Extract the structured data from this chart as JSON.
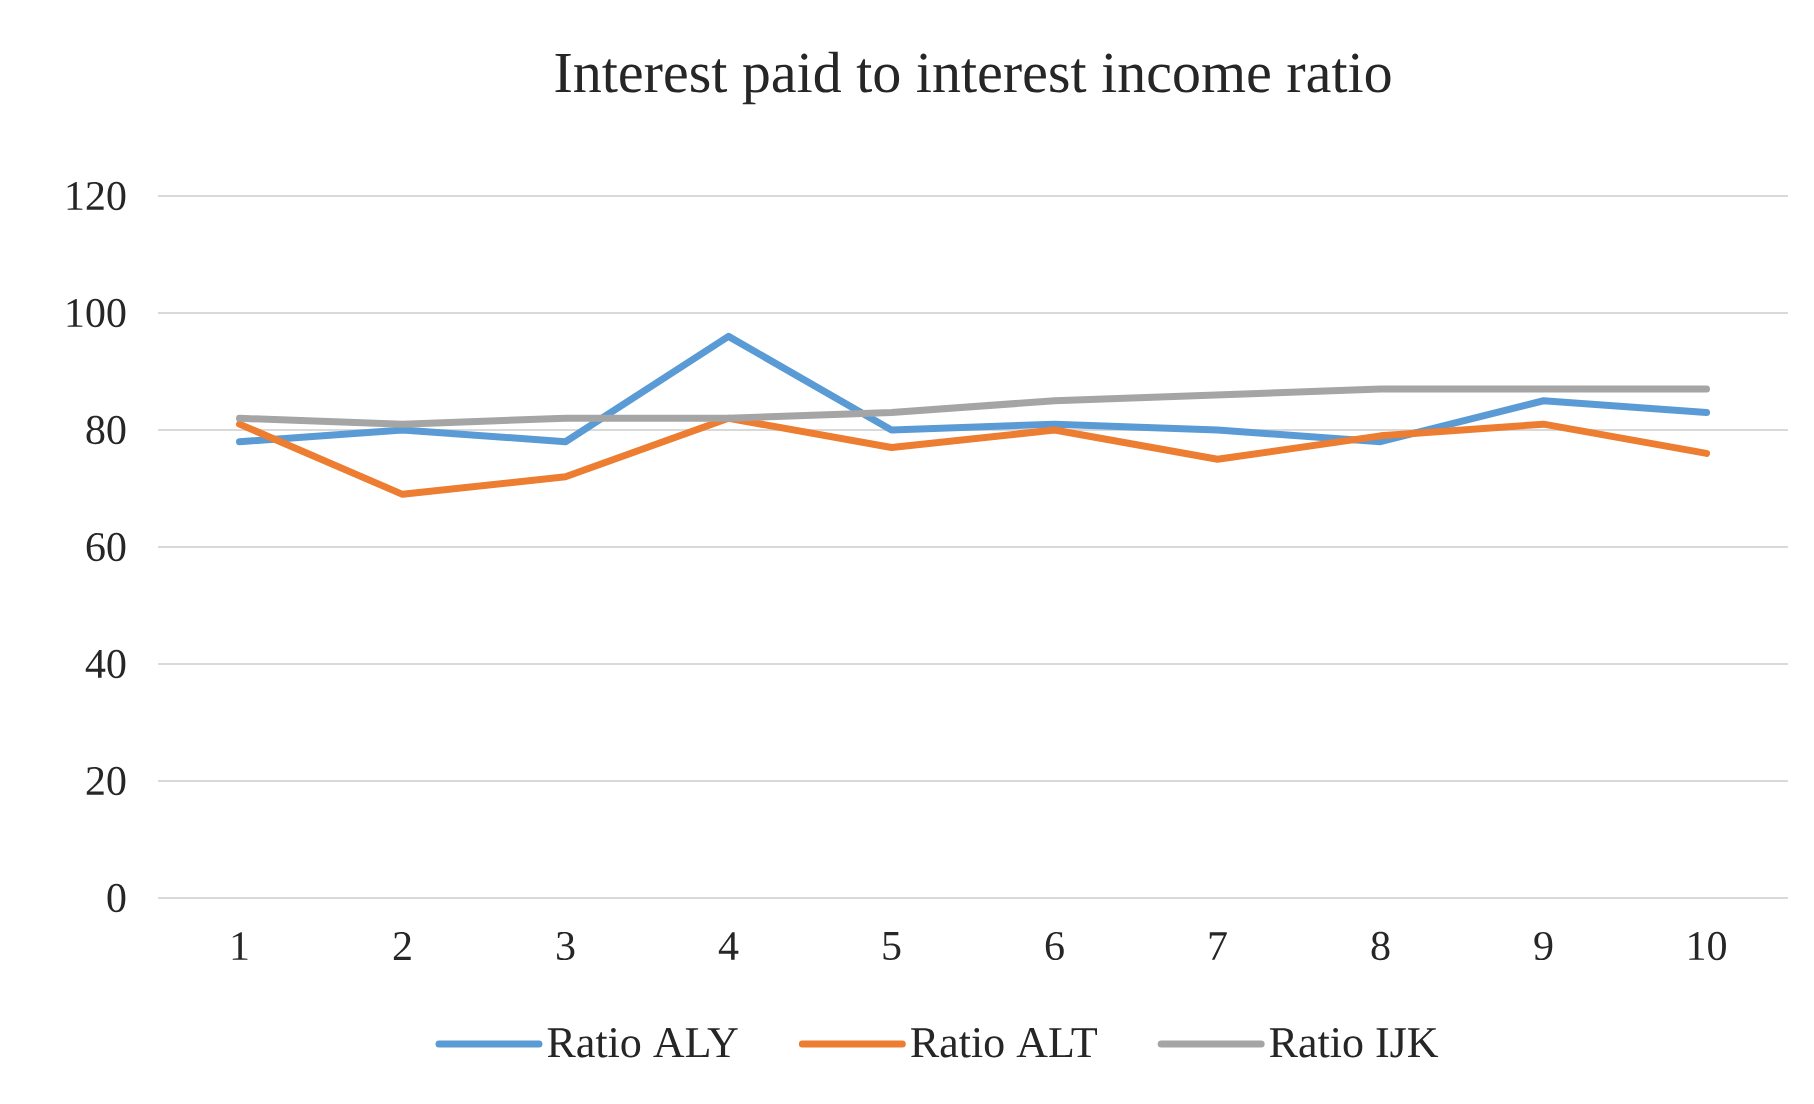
{
  "chart_data": {
    "type": "line",
    "title": "Interest paid to interest income ratio",
    "categories": [
      "1",
      "2",
      "3",
      "4",
      "5",
      "6",
      "7",
      "8",
      "9",
      "10"
    ],
    "series": [
      {
        "name": "Ratio ALY",
        "color": "#5b9bd5",
        "values": [
          78,
          80,
          78,
          96,
          80,
          81,
          80,
          78,
          85,
          83
        ]
      },
      {
        "name": "Ratio ALT",
        "color": "#ed7d31",
        "values": [
          81,
          69,
          72,
          82,
          77,
          80,
          75,
          79,
          81,
          76
        ]
      },
      {
        "name": "Ratio IJK",
        "color": "#a5a5a5",
        "values": [
          82,
          81,
          82,
          82,
          83,
          85,
          86,
          87,
          87,
          87
        ]
      }
    ],
    "ylim": [
      0,
      120
    ],
    "yticks": [
      0,
      20,
      40,
      60,
      80,
      100,
      120
    ],
    "grid": "y",
    "legend": "bottom",
    "marker": "none",
    "line_style": "solid"
  }
}
